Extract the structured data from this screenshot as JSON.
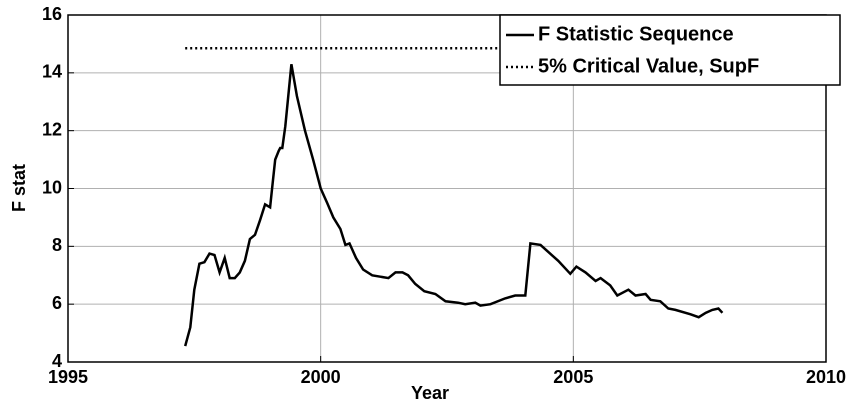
{
  "chart_data": {
    "type": "line",
    "xlabel": "Year",
    "ylabel": "F stat",
    "xlim": [
      1995,
      2010
    ],
    "xticks": [
      1995,
      2000,
      2005,
      2010
    ],
    "ylim": [
      4,
      16
    ],
    "yticks": [
      4,
      6,
      8,
      10,
      12,
      14,
      16
    ],
    "grid": true,
    "legend": "upper right",
    "series": [
      {
        "name": "F Statistic Sequence",
        "color": "#000000",
        "dash": "solid",
        "x": [
          1997.32,
          1997.42,
          1997.5,
          1997.6,
          1997.7,
          1997.8,
          1997.9,
          1998.0,
          1998.1,
          1998.2,
          1998.3,
          1998.4,
          1998.5,
          1998.6,
          1998.7,
          1998.8,
          1998.9,
          1999.0,
          1999.05,
          1999.1,
          1999.17,
          1999.2,
          1999.24,
          1999.3,
          1999.42,
          1999.53,
          1999.69,
          1999.85,
          2000.0,
          2000.13,
          2000.25,
          2000.39,
          2000.49,
          2000.57,
          2000.7,
          2000.84,
          2001.02,
          2001.18,
          2001.34,
          2001.48,
          2001.62,
          2001.73,
          2001.87,
          2002.05,
          2002.27,
          2002.47,
          2002.72,
          2002.86,
          2003.06,
          2003.16,
          2003.36,
          2003.65,
          2003.85,
          2004.05,
          2004.15,
          2004.35,
          2004.54,
          2004.7,
          2004.94,
          2005.06,
          2005.24,
          2005.44,
          2005.54,
          2005.73,
          2005.87,
          2006.09,
          2006.23,
          2006.43,
          2006.53,
          2006.72,
          2006.88,
          2007.02,
          2007.32,
          2007.48,
          2007.62,
          2007.75,
          2007.87,
          2007.95
        ],
        "values": [
          4.55,
          5.2,
          6.5,
          7.4,
          7.45,
          7.75,
          7.7,
          7.1,
          7.6,
          6.9,
          6.9,
          7.1,
          7.5,
          8.25,
          8.4,
          8.9,
          9.45,
          9.35,
          10.2,
          11.0,
          11.3,
          11.4,
          11.4,
          12.15,
          14.3,
          13.2,
          12.0,
          11.0,
          10.0,
          9.5,
          9.0,
          8.6,
          8.05,
          8.1,
          7.6,
          7.2,
          7.0,
          6.95,
          6.9,
          7.1,
          7.1,
          7.0,
          6.7,
          6.45,
          6.35,
          6.1,
          6.05,
          6.0,
          6.05,
          5.95,
          6.0,
          6.2,
          6.3,
          6.3,
          8.1,
          8.05,
          7.75,
          7.5,
          7.05,
          7.3,
          7.1,
          6.8,
          6.9,
          6.65,
          6.3,
          6.5,
          6.3,
          6.35,
          6.15,
          6.1,
          5.85,
          5.8,
          5.65,
          5.55,
          5.7,
          5.8,
          5.85,
          5.7
        ]
      },
      {
        "name": "5% Critical Value, SupF",
        "color": "#000000",
        "dash": "dotted",
        "x": [
          1997.32,
          2007.95
        ],
        "values": [
          14.85,
          14.85
        ]
      }
    ]
  }
}
